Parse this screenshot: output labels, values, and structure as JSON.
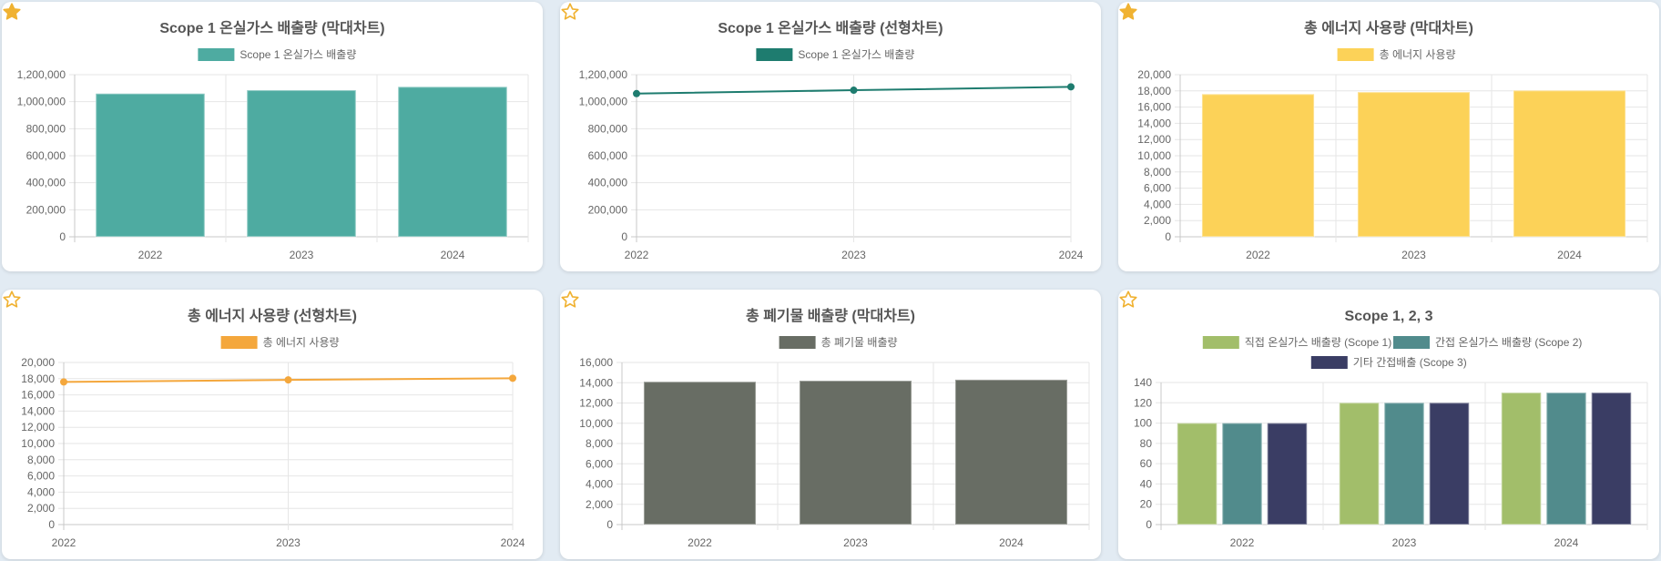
{
  "colors": {
    "teal": "#4eaba1",
    "dark_teal": "#1e7c6f",
    "yellow": "#fcd258",
    "orange": "#f4a73c",
    "gray": "#686d64",
    "green": "#a2be6a",
    "slate": "#518b8c",
    "navy": "#3a3d64",
    "star": "#f0b232"
  },
  "cards": [
    {
      "star": "filled"
    },
    {
      "star": "outline"
    },
    {
      "star": "filled"
    },
    {
      "star": "outline"
    },
    {
      "star": "outline"
    },
    {
      "star": "outline"
    }
  ],
  "chart_data": [
    {
      "type": "bar",
      "title": "Scope 1 온실가스 배출량 (막대차트)",
      "categories": [
        "2022",
        "2023",
        "2024"
      ],
      "series": [
        {
          "name": "Scope 1 온실가스 배출량",
          "values": [
            1060000,
            1085000,
            1110000
          ],
          "color": "#4eaba1"
        }
      ],
      "ylim": [
        0,
        1200000
      ],
      "yticks": [
        0,
        200000,
        400000,
        600000,
        800000,
        1000000,
        1200000
      ],
      "ytick_labels": [
        "0",
        "200,000",
        "400,000",
        "600,000",
        "800,000",
        "1,000,000",
        "1,200,000"
      ],
      "grid": true,
      "legend": "top"
    },
    {
      "type": "line",
      "title": "Scope 1 온실가스 배출량 (선형차트)",
      "categories": [
        "2022",
        "2023",
        "2024"
      ],
      "series": [
        {
          "name": "Scope 1 온실가스 배출량",
          "values": [
            1060000,
            1085000,
            1110000
          ],
          "color": "#1e7c6f"
        }
      ],
      "ylim": [
        0,
        1200000
      ],
      "yticks": [
        0,
        200000,
        400000,
        600000,
        800000,
        1000000,
        1200000
      ],
      "ytick_labels": [
        "0",
        "200,000",
        "400,000",
        "600,000",
        "800,000",
        "1,000,000",
        "1,200,000"
      ],
      "grid": true,
      "legend": "top"
    },
    {
      "type": "bar",
      "title": "총 에너지 사용량 (막대차트)",
      "categories": [
        "2022",
        "2023",
        "2024"
      ],
      "series": [
        {
          "name": "총 에너지 사용량",
          "values": [
            17600,
            17850,
            18050
          ],
          "color": "#fcd258"
        }
      ],
      "ylim": [
        0,
        20000
      ],
      "yticks": [
        0,
        2000,
        4000,
        6000,
        8000,
        10000,
        12000,
        14000,
        16000,
        18000,
        20000
      ],
      "ytick_labels": [
        "0",
        "2,000",
        "4,000",
        "6,000",
        "8,000",
        "10,000",
        "12,000",
        "14,000",
        "16,000",
        "18,000",
        "20,000"
      ],
      "grid": true,
      "legend": "top"
    },
    {
      "type": "line",
      "title": "총 에너지 사용량 (선형차트)",
      "categories": [
        "2022",
        "2023",
        "2024"
      ],
      "series": [
        {
          "name": "총 에너지 사용량",
          "values": [
            17600,
            17850,
            18050
          ],
          "color": "#f4a73c"
        }
      ],
      "ylim": [
        0,
        20000
      ],
      "yticks": [
        0,
        2000,
        4000,
        6000,
        8000,
        10000,
        12000,
        14000,
        16000,
        18000,
        20000
      ],
      "ytick_labels": [
        "0",
        "2,000",
        "4,000",
        "6,000",
        "8,000",
        "10,000",
        "12,000",
        "14,000",
        "16,000",
        "18,000",
        "20,000"
      ],
      "grid": true,
      "legend": "top"
    },
    {
      "type": "bar",
      "title": "총 폐기물 배출량 (막대차트)",
      "categories": [
        "2022",
        "2023",
        "2024"
      ],
      "series": [
        {
          "name": "총 폐기물 배출량",
          "values": [
            14100,
            14200,
            14300
          ],
          "color": "#686d64"
        }
      ],
      "ylim": [
        0,
        16000
      ],
      "yticks": [
        0,
        2000,
        4000,
        6000,
        8000,
        10000,
        12000,
        14000,
        16000
      ],
      "ytick_labels": [
        "0",
        "2,000",
        "4,000",
        "6,000",
        "8,000",
        "10,000",
        "12,000",
        "14,000",
        "16,000"
      ],
      "grid": true,
      "legend": "top"
    },
    {
      "type": "bar",
      "title": "Scope 1, 2, 3",
      "categories": [
        "2022",
        "2023",
        "2024"
      ],
      "series": [
        {
          "name": "직접 온실가스 배출량 (Scope 1)",
          "values": [
            100,
            120,
            130
          ],
          "color": "#a2be6a"
        },
        {
          "name": "간접 온실가스 배출량 (Scope 2)",
          "values": [
            100,
            120,
            130
          ],
          "color": "#518b8c"
        },
        {
          "name": "기타 간접배출 (Scope 3)",
          "values": [
            100,
            120,
            130
          ],
          "color": "#3a3d64"
        }
      ],
      "ylim": [
        0,
        140
      ],
      "yticks": [
        0,
        20,
        40,
        60,
        80,
        100,
        120,
        140
      ],
      "ytick_labels": [
        "0",
        "20",
        "40",
        "60",
        "80",
        "100",
        "120",
        "140"
      ],
      "grid": true,
      "legend": "top"
    }
  ]
}
